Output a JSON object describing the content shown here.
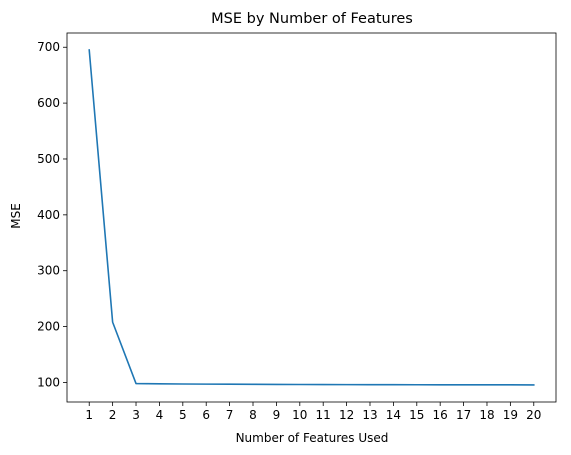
{
  "chart_data": {
    "type": "line",
    "title": "MSE by Number of Features",
    "xlabel": "Number of Features Used",
    "ylabel": "MSE",
    "x": [
      1,
      2,
      3,
      4,
      5,
      6,
      7,
      8,
      9,
      10,
      11,
      12,
      13,
      14,
      15,
      16,
      17,
      18,
      19,
      20
    ],
    "series": [
      {
        "values": [
          695,
          208,
          98,
          97.6,
          97.2,
          97.0,
          96.8,
          96.6,
          96.4,
          96.3,
          96.2,
          96.1,
          96.0,
          95.95,
          95.9,
          95.85,
          95.8,
          95.75,
          95.7,
          95.6
        ],
        "color": "#1f77b4"
      }
    ],
    "xticks": [
      1,
      2,
      3,
      4,
      5,
      6,
      7,
      8,
      9,
      10,
      11,
      12,
      13,
      14,
      15,
      16,
      17,
      18,
      19,
      20
    ],
    "yticks": [
      100,
      200,
      300,
      400,
      500,
      600,
      700
    ],
    "xlim": [
      0.05,
      20.95
    ],
    "ylim": [
      65.0,
      725.5
    ],
    "grid": false
  }
}
